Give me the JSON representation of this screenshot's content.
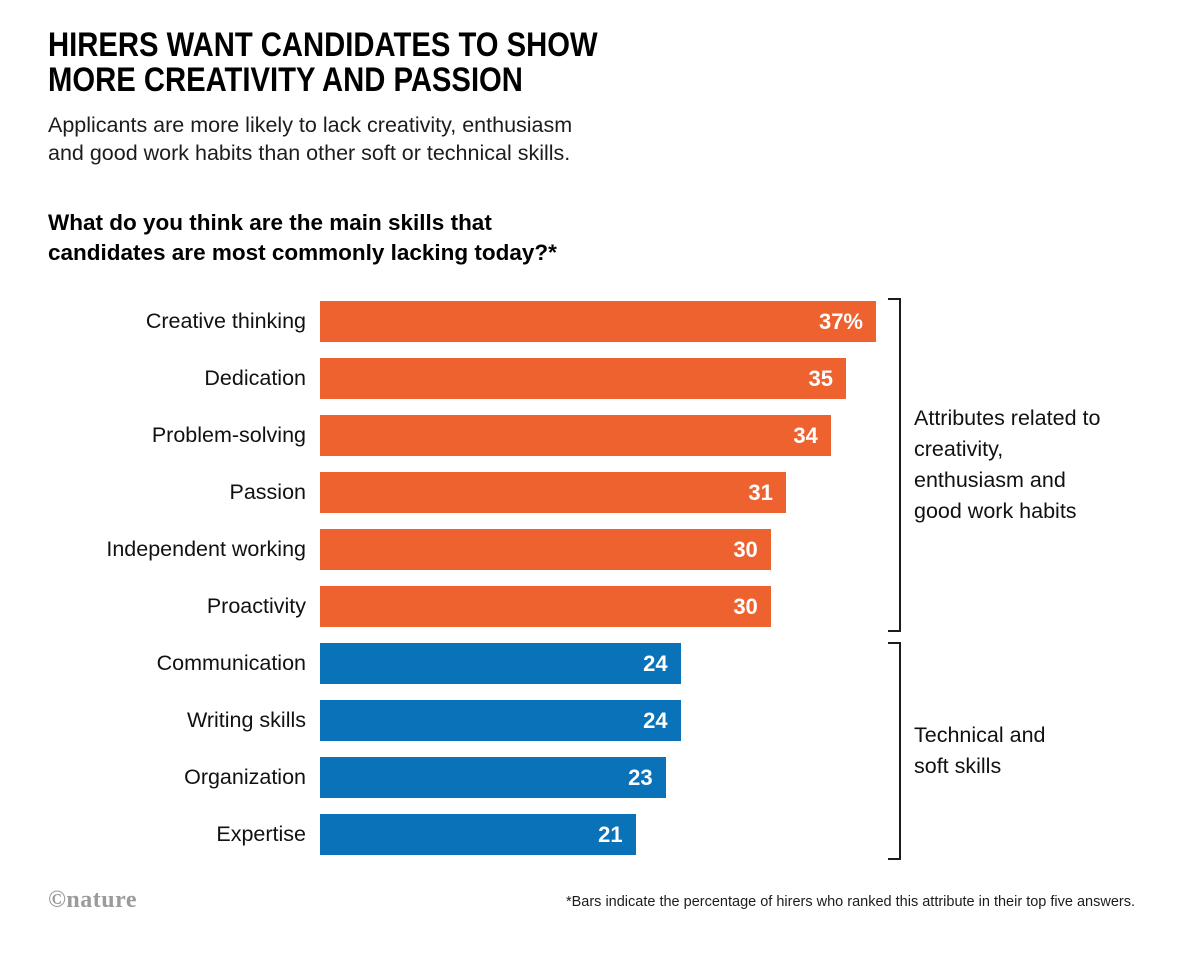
{
  "header": {
    "title_line1": "HIRERS WANT CANDIDATES TO SHOW",
    "title_line2": "MORE CREATIVITY AND PASSION",
    "subtitle_line1": "Applicants are more likely to lack creativity, enthusiasm",
    "subtitle_line2": "and good work habits than other soft or technical skills.",
    "question_line1": "What do you think are the main skills that",
    "question_line2": "candidates are most commonly lacking today?*"
  },
  "chart_data": {
    "type": "bar",
    "orientation": "horizontal",
    "title": "What do you think are the main skills that candidates are most commonly lacking today?*",
    "max_value": 37,
    "first_value_suffix": "%",
    "categories": [
      "Creative thinking",
      "Dedication",
      "Problem-solving",
      "Passion",
      "Independent working",
      "Proactivity",
      "Communication",
      "Writing skills",
      "Organization",
      "Expertise"
    ],
    "values": [
      37,
      35,
      34,
      31,
      30,
      30,
      24,
      24,
      23,
      21
    ],
    "groups": [
      {
        "name": "creativity-group",
        "label": "Attributes related to creativity, enthusiasm and good work habits",
        "color": "#EE6230",
        "start": 0,
        "count": 6
      },
      {
        "name": "technical-group",
        "label": "Technical and soft skills",
        "color": "#0A72B9",
        "start": 6,
        "count": 4
      }
    ],
    "legend_position": "right-brackets",
    "grid": false
  },
  "footer": {
    "credit": "©nature",
    "footnote": "*Bars indicate the percentage of hirers who ranked this attribute in their top five answers."
  }
}
